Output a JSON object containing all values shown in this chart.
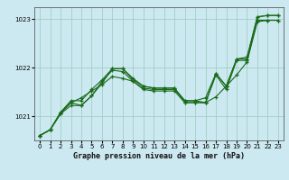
{
  "title": "Graphe pression niveau de la mer (hPa)",
  "bg_color": "#cce8f0",
  "line_color": "#1a6b1a",
  "grid_color": "#99ccbb",
  "ylim": [
    1020.5,
    1023.25
  ],
  "xlim": [
    -0.5,
    23.5
  ],
  "yticks": [
    1021,
    1022,
    1023
  ],
  "xticks": [
    0,
    1,
    2,
    3,
    4,
    5,
    6,
    7,
    8,
    9,
    10,
    11,
    12,
    13,
    14,
    15,
    16,
    17,
    18,
    19,
    20,
    21,
    22,
    23
  ],
  "series1": [
    [
      0.0,
      1020.6
    ],
    [
      1.0,
      1020.72
    ],
    [
      2.0,
      1021.05
    ],
    [
      3.0,
      1021.28
    ],
    [
      4.0,
      1021.38
    ],
    [
      5.0,
      1021.52
    ],
    [
      6.0,
      1021.65
    ],
    [
      7.0,
      1021.82
    ],
    [
      8.0,
      1021.78
    ],
    [
      9.0,
      1021.72
    ],
    [
      10.0,
      1021.58
    ],
    [
      11.0,
      1021.55
    ],
    [
      12.0,
      1021.55
    ],
    [
      13.0,
      1021.55
    ],
    [
      14.0,
      1021.32
    ],
    [
      15.0,
      1021.32
    ],
    [
      16.0,
      1021.28
    ],
    [
      17.0,
      1021.4
    ],
    [
      18.0,
      1021.62
    ],
    [
      19.0,
      1021.85
    ],
    [
      20.0,
      1022.12
    ],
    [
      21.0,
      1022.95
    ],
    [
      22.0,
      1022.98
    ],
    [
      23.0,
      1022.98
    ]
  ],
  "series2": [
    [
      0.0,
      1020.6
    ],
    [
      1.0,
      1020.72
    ],
    [
      2.0,
      1021.05
    ],
    [
      3.0,
      1021.22
    ],
    [
      4.0,
      1021.22
    ],
    [
      5.0,
      1021.42
    ],
    [
      6.0,
      1021.72
    ],
    [
      7.0,
      1021.95
    ],
    [
      8.0,
      1021.92
    ],
    [
      9.0,
      1021.72
    ],
    [
      10.0,
      1021.55
    ],
    [
      11.0,
      1021.52
    ],
    [
      12.0,
      1021.52
    ],
    [
      13.0,
      1021.52
    ],
    [
      14.0,
      1021.28
    ],
    [
      15.0,
      1021.28
    ],
    [
      16.0,
      1021.28
    ],
    [
      17.0,
      1021.85
    ],
    [
      18.0,
      1021.55
    ],
    [
      19.0,
      1022.15
    ],
    [
      20.0,
      1022.15
    ],
    [
      21.0,
      1022.98
    ],
    [
      22.0,
      1022.98
    ],
    [
      23.0,
      1022.98
    ]
  ],
  "series3": [
    [
      0.0,
      1020.6
    ],
    [
      1.0,
      1020.72
    ],
    [
      2.0,
      1021.08
    ],
    [
      3.0,
      1021.28
    ],
    [
      4.0,
      1021.22
    ],
    [
      5.0,
      1021.42
    ],
    [
      6.0,
      1021.68
    ],
    [
      7.0,
      1021.98
    ],
    [
      8.0,
      1021.98
    ],
    [
      9.0,
      1021.75
    ],
    [
      10.0,
      1021.62
    ],
    [
      11.0,
      1021.58
    ],
    [
      12.0,
      1021.58
    ],
    [
      13.0,
      1021.58
    ],
    [
      14.0,
      1021.28
    ],
    [
      15.0,
      1021.28
    ],
    [
      16.0,
      1021.28
    ],
    [
      17.0,
      1021.88
    ],
    [
      18.0,
      1021.62
    ],
    [
      19.0,
      1022.18
    ],
    [
      20.0,
      1022.18
    ],
    [
      21.0,
      1023.05
    ],
    [
      22.0,
      1023.08
    ],
    [
      23.0,
      1023.08
    ]
  ],
  "series4": [
    [
      0.0,
      1020.6
    ],
    [
      1.0,
      1020.72
    ],
    [
      2.0,
      1021.08
    ],
    [
      3.0,
      1021.32
    ],
    [
      4.0,
      1021.32
    ],
    [
      5.0,
      1021.55
    ],
    [
      6.0,
      1021.75
    ],
    [
      7.0,
      1021.98
    ],
    [
      8.0,
      1021.98
    ],
    [
      9.0,
      1021.78
    ],
    [
      10.0,
      1021.62
    ],
    [
      11.0,
      1021.58
    ],
    [
      12.0,
      1021.58
    ],
    [
      13.0,
      1021.58
    ],
    [
      14.0,
      1021.32
    ],
    [
      15.0,
      1021.32
    ],
    [
      16.0,
      1021.38
    ],
    [
      17.0,
      1021.88
    ],
    [
      18.0,
      1021.62
    ],
    [
      19.0,
      1022.18
    ],
    [
      20.0,
      1022.22
    ],
    [
      21.0,
      1023.05
    ],
    [
      22.0,
      1023.08
    ],
    [
      23.0,
      1023.08
    ]
  ]
}
